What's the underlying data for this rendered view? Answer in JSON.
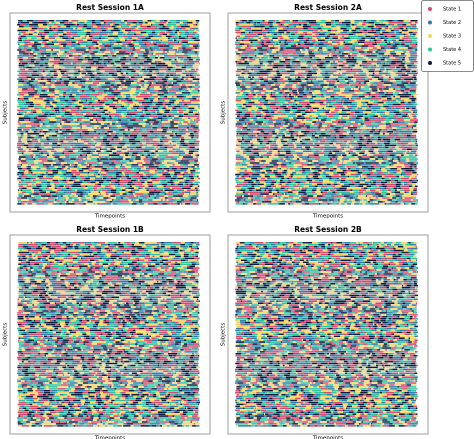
{
  "chart_data": [
    {
      "type": "raster",
      "title": "Rest Session 1A",
      "xlabel": "Timepoints",
      "ylabel": "Subjects"
    },
    {
      "type": "raster",
      "title": "Rest Session 2A",
      "xlabel": "Timepoints",
      "ylabel": "Subjects"
    },
    {
      "type": "raster",
      "title": "Rest Session 1B",
      "xlabel": "Timepoints",
      "ylabel": "Subjects"
    },
    {
      "type": "raster",
      "title": "Rest Session 2B",
      "xlabel": "Timepoints",
      "ylabel": "Subjects"
    }
  ],
  "legend": [
    {
      "name": "State 1",
      "color": "#d9486e"
    },
    {
      "name": "State 2",
      "color": "#2a7fa8"
    },
    {
      "name": "State 3",
      "color": "#f3d36b"
    },
    {
      "name": "State 4",
      "color": "#2ec4a0"
    },
    {
      "name": "State 5",
      "color": "#0d1b3e"
    }
  ]
}
